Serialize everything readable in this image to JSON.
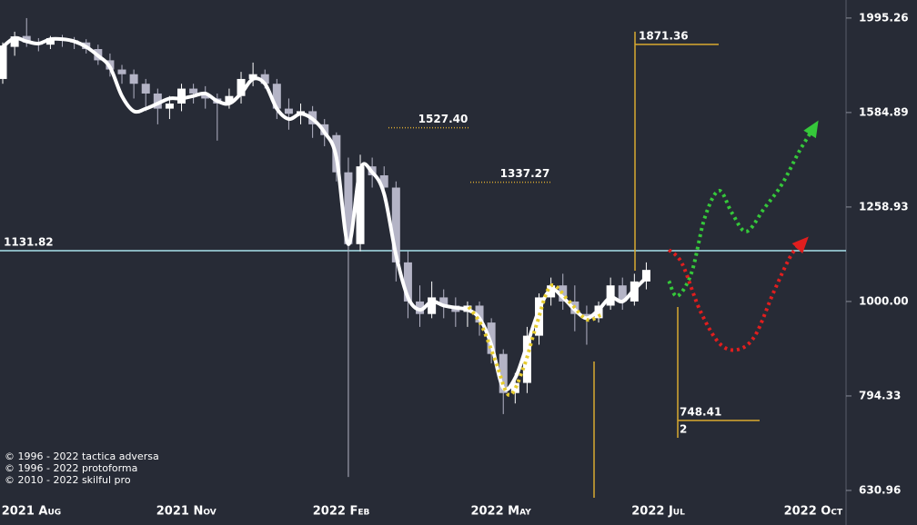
{
  "chart_data": {
    "type": "candlestick",
    "log_y": true,
    "background": "#272b36",
    "up_color": "#ffffff",
    "down_color": "#b4b4c6",
    "xlim": [
      -0.23,
      70.76
    ],
    "xticks": [
      {
        "value": 2.4,
        "label": "2021 Aug"
      },
      {
        "value": 15.4,
        "label": "2021 Nov"
      },
      {
        "value": 28.4,
        "label": "2022 Feb"
      },
      {
        "value": 41.8,
        "label": "2022 May"
      },
      {
        "value": 55,
        "label": "2022 Jul"
      },
      {
        "value": 68,
        "label": "2022 Oct"
      }
    ],
    "ylim": [
      580,
      2085
    ],
    "yticks": [
      1995.26,
      1584.89,
      1258.93,
      {
        "value": 1000,
        "label": "1000.00"
      },
      794.33,
      630.96
    ],
    "x": [
      0,
      1,
      2,
      3,
      4,
      5,
      6,
      7,
      8,
      9,
      10,
      11,
      12,
      13,
      14,
      15,
      16,
      17,
      18,
      19,
      20,
      21,
      22,
      23,
      24,
      25,
      26,
      27,
      28,
      29,
      30,
      31,
      32,
      33,
      34,
      35,
      36,
      37,
      38,
      39,
      40,
      41,
      42,
      43,
      44,
      45,
      46,
      47,
      48,
      49,
      50,
      51,
      52,
      53,
      54
    ],
    "open": [
      1720,
      1860,
      1910,
      1880,
      1870,
      1900,
      1890,
      1880,
      1850,
      1800,
      1760,
      1740,
      1700,
      1660,
      1600,
      1620,
      1680,
      1660,
      1640,
      1620,
      1650,
      1720,
      1740,
      1700,
      1600,
      1580,
      1590,
      1540,
      1500,
      1370,
      1150,
      1390,
      1360,
      1320,
      1100,
      1000,
      970,
      1010,
      990,
      975,
      990,
      950,
      880,
      800,
      820,
      920,
      1010,
      1040,
      1000,
      970,
      960,
      990,
      1040,
      1000,
      1050
    ],
    "high": [
      1880,
      1930,
      1995,
      1900,
      1910,
      1915,
      1905,
      1895,
      1870,
      1830,
      1780,
      1760,
      1720,
      1680,
      1650,
      1700,
      1700,
      1690,
      1660,
      1680,
      1750,
      1790,
      1760,
      1720,
      1640,
      1620,
      1610,
      1560,
      1510,
      1420,
      1430,
      1420,
      1390,
      1340,
      1130,
      1040,
      1050,
      1030,
      1010,
      1000,
      1000,
      960,
      890,
      840,
      940,
      1020,
      1060,
      1070,
      1040,
      990,
      1000,
      1060,
      1060,
      1070,
      1100
    ],
    "low": [
      1700,
      1820,
      1860,
      1840,
      1850,
      1860,
      1850,
      1830,
      1780,
      1730,
      1700,
      1640,
      1590,
      1540,
      1560,
      1590,
      1620,
      1600,
      1480,
      1600,
      1620,
      1690,
      1680,
      1560,
      1520,
      1540,
      1490,
      1460,
      1340,
      652,
      1130,
      1320,
      1280,
      1050,
      960,
      940,
      960,
      960,
      940,
      940,
      920,
      860,
      760,
      780,
      800,
      900,
      990,
      980,
      930,
      900,
      950,
      980,
      980,
      990,
      1030
    ],
    "close": [
      1866,
      1908,
      1880,
      1870,
      1900,
      1895,
      1880,
      1850,
      1800,
      1760,
      1740,
      1700,
      1660,
      1600,
      1620,
      1680,
      1660,
      1640,
      1620,
      1650,
      1720,
      1740,
      1700,
      1600,
      1580,
      1590,
      1540,
      1500,
      1370,
      1150,
      1390,
      1360,
      1320,
      1100,
      1000,
      970,
      1010,
      990,
      975,
      990,
      950,
      880,
      800,
      820,
      920,
      1010,
      1040,
      1000,
      970,
      960,
      990,
      1040,
      1000,
      1050,
      1080
    ],
    "trend": {
      "color": "#ffffff",
      "values": [
        1860,
        1900,
        1885,
        1875,
        1895,
        1895,
        1885,
        1860,
        1820,
        1770,
        1650,
        1590,
        1600,
        1620,
        1640,
        1640,
        1650,
        1660,
        1630,
        1620,
        1660,
        1720,
        1700,
        1600,
        1560,
        1580,
        1560,
        1510,
        1420,
        1150,
        1380,
        1370,
        1300,
        1120,
        1010,
        980,
        1000,
        990,
        985,
        980,
        960,
        900,
        810,
        830,
        900,
        980,
        1030,
        1010,
        980,
        960,
        980,
        1010,
        1000,
        1030,
        1060
      ]
    },
    "levels": [
      {
        "value": 1131.82,
        "color": "#a8e2ec"
      },
      {
        "value": 1871.36,
        "color": "#d8a930"
      },
      {
        "value": 1527.4,
        "label": "1527.40",
        "color": "#d8a930"
      },
      {
        "value": 1337.27,
        "color": "#d8a930"
      },
      {
        "value": 748.41,
        "sublabel": "2",
        "color": "#d8a930"
      }
    ],
    "projections": [
      {
        "color": "#e6cc2e",
        "arrow": false,
        "x": [
          39.1,
          40.2,
          41.4,
          42.5,
          43.7,
          44.8,
          46.0,
          47.5,
          49.0,
          50.2
        ],
        "values": [
          987,
          942,
          861,
          796,
          851,
          946,
          1039,
          1001,
          957,
          968
        ]
      },
      {
        "color": "#35c83a",
        "arrow": true,
        "x": [
          55.9,
          56.6,
          57.8,
          58.9,
          60.1,
          61.2,
          62.4,
          63.9,
          65.4,
          66.9,
          68.2
        ],
        "values": [
          1051,
          1013,
          1073,
          1226,
          1310,
          1240,
          1186,
          1255,
          1332,
          1447,
          1537
        ]
      },
      {
        "color": "#e01e1e",
        "arrow": true,
        "x": [
          55.9,
          57.0,
          58.5,
          60.1,
          61.6,
          63.1,
          64.7,
          66.2,
          67.3
        ],
        "values": [
          1134,
          1097,
          979,
          904,
          889,
          919,
          1024,
          1122,
          1160
        ]
      }
    ],
    "notes": [
      "© 1996 - 2022 tactica adversa",
      "© 1996 - 2022 protoforma",
      "© 2010 - 2022 skilful pro"
    ]
  }
}
